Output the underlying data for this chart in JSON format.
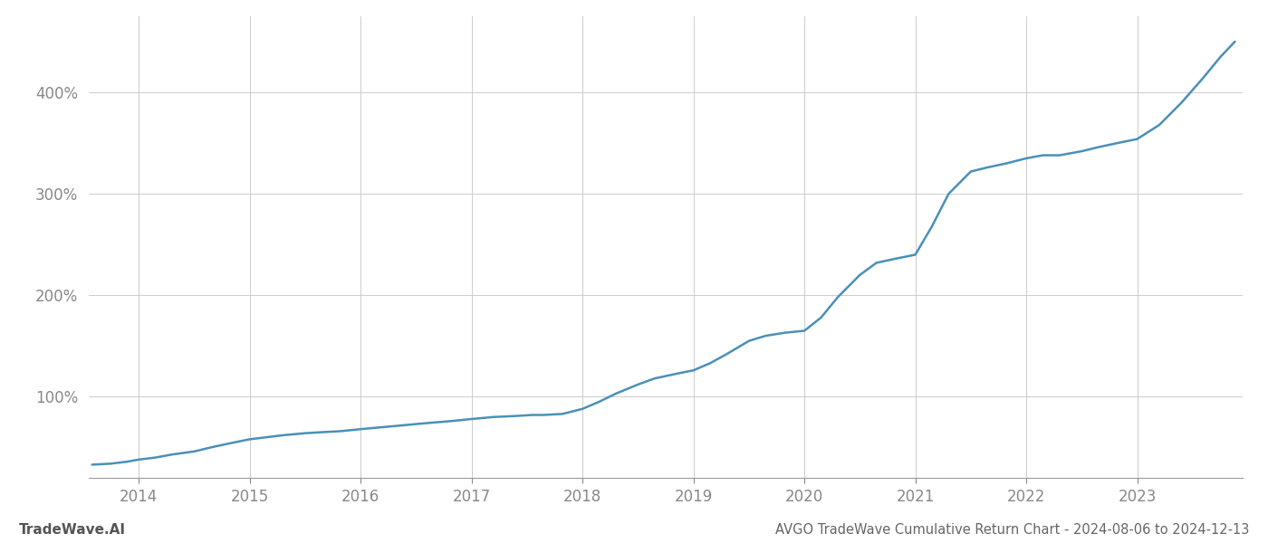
{
  "title": "AVGO TradeWave Cumulative Return Chart - 2024-08-06 to 2024-12-13",
  "watermark": "TradeWave.AI",
  "line_color": "#4a90b8",
  "background_color": "#ffffff",
  "grid_color": "#cccccc",
  "x_years": [
    2014,
    2015,
    2016,
    2017,
    2018,
    2019,
    2020,
    2021,
    2022,
    2023
  ],
  "y_ticks": [
    100,
    200,
    300,
    400
  ],
  "y_tick_labels": [
    "100%",
    "200%",
    "300%",
    "400%"
  ],
  "ylim": [
    20,
    475
  ],
  "xlim_start": 2013.55,
  "xlim_end": 2023.95,
  "data_x": [
    2013.58,
    2013.75,
    2013.9,
    2014.0,
    2014.15,
    2014.3,
    2014.5,
    2014.65,
    2014.82,
    2015.0,
    2015.15,
    2015.3,
    2015.5,
    2015.65,
    2015.82,
    2016.0,
    2016.2,
    2016.4,
    2016.6,
    2016.82,
    2017.0,
    2017.2,
    2017.4,
    2017.55,
    2017.65,
    2017.82,
    2018.0,
    2018.15,
    2018.3,
    2018.5,
    2018.65,
    2018.82,
    2019.0,
    2019.15,
    2019.3,
    2019.5,
    2019.65,
    2019.82,
    2020.0,
    2020.15,
    2020.3,
    2020.5,
    2020.65,
    2020.82,
    2021.0,
    2021.15,
    2021.3,
    2021.5,
    2021.65,
    2021.82,
    2022.0,
    2022.15,
    2022.3,
    2022.5,
    2022.65,
    2022.82,
    2023.0,
    2023.2,
    2023.4,
    2023.6,
    2023.75,
    2023.88
  ],
  "data_y": [
    33,
    34,
    36,
    38,
    40,
    43,
    46,
    50,
    54,
    58,
    60,
    62,
    64,
    65,
    66,
    68,
    70,
    72,
    74,
    76,
    78,
    80,
    81,
    82,
    82,
    83,
    88,
    95,
    103,
    112,
    118,
    122,
    126,
    133,
    142,
    155,
    160,
    163,
    165,
    178,
    198,
    220,
    232,
    236,
    240,
    268,
    300,
    322,
    326,
    330,
    335,
    338,
    338,
    342,
    346,
    350,
    354,
    368,
    390,
    415,
    435,
    450
  ],
  "axis_label_color": "#888888",
  "title_color": "#666666",
  "watermark_color": "#555555",
  "title_fontsize": 10.5,
  "watermark_fontsize": 11,
  "tick_fontsize": 12,
  "line_width": 1.8
}
